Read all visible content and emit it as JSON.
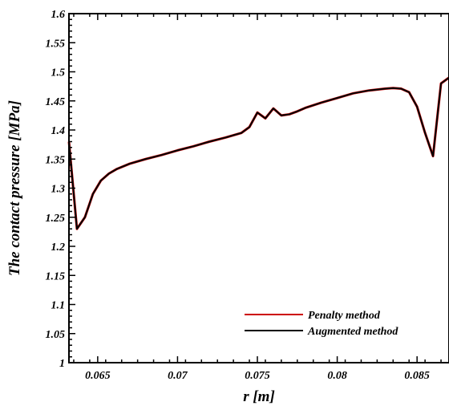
{
  "chart_data": {
    "type": "line",
    "xlabel": "r [m]",
    "ylabel": "The contact pressure [MPa]",
    "xlim": [
      0.0632,
      0.087
    ],
    "ylim": [
      1.0,
      1.6
    ],
    "x_ticks": [
      0.065,
      0.07,
      0.075,
      0.08,
      0.085
    ],
    "x_tick_labels": [
      "0.065",
      "0.07",
      "0.075",
      "0.08",
      "0.085"
    ],
    "y_ticks": [
      1.0,
      1.05,
      1.1,
      1.15,
      1.2,
      1.25,
      1.3,
      1.35,
      1.4,
      1.45,
      1.5,
      1.55,
      1.6
    ],
    "y_tick_labels": [
      "1",
      "1.05",
      "1.1",
      "1.15",
      "1.2",
      "1.25",
      "1.3",
      "1.35",
      "1.4",
      "1.45",
      "1.5",
      "1.55",
      "1.6"
    ],
    "grid": false,
    "legend_position": "bottom-right",
    "series": [
      {
        "name": "Penalty method",
        "color": "#cc0000",
        "x": [
          0.0632,
          0.0637,
          0.0642,
          0.0647,
          0.0652,
          0.0657,
          0.0662,
          0.067,
          0.068,
          0.069,
          0.07,
          0.071,
          0.072,
          0.073,
          0.074,
          0.0745,
          0.075,
          0.0755,
          0.076,
          0.0765,
          0.077,
          0.0775,
          0.078,
          0.079,
          0.08,
          0.081,
          0.082,
          0.083,
          0.0835,
          0.084,
          0.0845,
          0.085,
          0.0855,
          0.086,
          0.0865,
          0.087
        ],
        "y": [
          1.38,
          1.23,
          1.25,
          1.29,
          1.313,
          1.325,
          1.333,
          1.342,
          1.35,
          1.357,
          1.365,
          1.372,
          1.38,
          1.387,
          1.395,
          1.405,
          1.43,
          1.42,
          1.437,
          1.425,
          1.427,
          1.432,
          1.438,
          1.447,
          1.455,
          1.463,
          1.468,
          1.471,
          1.472,
          1.471,
          1.465,
          1.44,
          1.395,
          1.355,
          1.48,
          1.49
        ]
      },
      {
        "name": "Augmented method",
        "color": "#000000",
        "x": [
          0.0632,
          0.0637,
          0.0642,
          0.0647,
          0.0652,
          0.0657,
          0.0662,
          0.067,
          0.068,
          0.069,
          0.07,
          0.071,
          0.072,
          0.073,
          0.074,
          0.0745,
          0.075,
          0.0755,
          0.076,
          0.0765,
          0.077,
          0.0775,
          0.078,
          0.079,
          0.08,
          0.081,
          0.082,
          0.083,
          0.0835,
          0.084,
          0.0845,
          0.085,
          0.0855,
          0.086,
          0.0865,
          0.087
        ],
        "y": [
          1.38,
          1.23,
          1.25,
          1.29,
          1.313,
          1.325,
          1.333,
          1.342,
          1.35,
          1.357,
          1.365,
          1.372,
          1.38,
          1.387,
          1.395,
          1.405,
          1.43,
          1.42,
          1.437,
          1.425,
          1.427,
          1.432,
          1.438,
          1.447,
          1.455,
          1.463,
          1.468,
          1.471,
          1.472,
          1.471,
          1.465,
          1.44,
          1.395,
          1.355,
          1.48,
          1.49
        ]
      }
    ]
  }
}
